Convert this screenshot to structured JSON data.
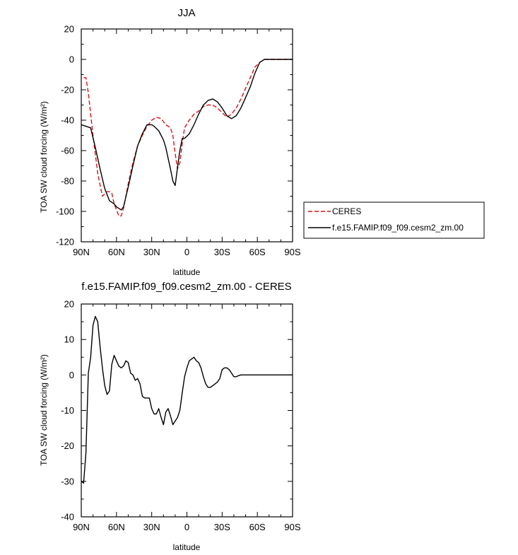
{
  "chart_data": [
    {
      "type": "line",
      "title": "JJA",
      "xlabel": "latitude",
      "ylabel": "TOA SW cloud forcing (W/m²)",
      "ylim": [
        -120,
        20
      ],
      "xlim": [
        -90,
        90
      ],
      "x_ticks": [
        -90,
        -60,
        -30,
        0,
        30,
        60,
        90
      ],
      "x_tick_labels": [
        "90N",
        "60N",
        "30N",
        "0",
        "30S",
        "60S",
        "90S"
      ],
      "y_ticks": [
        20,
        0,
        -20,
        -40,
        -60,
        -80,
        -100,
        -120
      ],
      "y_tick_labels": [
        "20",
        "0",
        "-20",
        "-40",
        "-60",
        "-80",
        "-100",
        "-120"
      ],
      "legend_placement": "right-outside",
      "series": [
        {
          "name": "CERES",
          "color": "#dd1111",
          "dash": "dashed",
          "x": [
            -88,
            -86,
            -84,
            -80,
            -76,
            -72,
            -68,
            -66,
            -64,
            -62,
            -58,
            -56,
            -54,
            -50,
            -46,
            -42,
            -38,
            -34,
            -30,
            -26,
            -22,
            -18,
            -14,
            -12,
            -10,
            -8,
            -6,
            -4,
            -2,
            2,
            6,
            10,
            14,
            18,
            22,
            26,
            30,
            34,
            38,
            42,
            46,
            50,
            54,
            58,
            62,
            66,
            70,
            74,
            80,
            90
          ],
          "y": [
            -12,
            -12,
            -22,
            -50,
            -75,
            -90,
            -87,
            -87,
            -88,
            -95,
            -103,
            -103,
            -98,
            -82,
            -68,
            -57,
            -50,
            -44,
            -40,
            -38,
            -39,
            -43,
            -45,
            -50,
            -62,
            -72,
            -68,
            -55,
            -45,
            -40,
            -36,
            -34,
            -31,
            -30,
            -30,
            -32,
            -35,
            -38,
            -36,
            -32,
            -26,
            -19,
            -12,
            -5,
            -2,
            0,
            0,
            0,
            0,
            0
          ]
        },
        {
          "name": "f.e15.FAMIP.f09_f09.cesm2_zm.00",
          "color": "#000000",
          "dash": "solid",
          "x": [
            -90,
            -86,
            -82,
            -78,
            -74,
            -70,
            -66,
            -62,
            -60,
            -58,
            -56,
            -54,
            -50,
            -46,
            -42,
            -38,
            -34,
            -30,
            -28,
            -24,
            -22,
            -20,
            -18,
            -16,
            -14,
            -12,
            -10,
            -8,
            -6,
            -4,
            -2,
            2,
            6,
            10,
            14,
            18,
            22,
            26,
            30,
            34,
            38,
            42,
            46,
            50,
            54,
            58,
            62,
            66,
            70,
            74,
            80,
            90
          ],
          "y": [
            -43,
            -44,
            -45,
            -58,
            -72,
            -85,
            -93,
            -95,
            -97,
            -98,
            -99,
            -97,
            -84,
            -70,
            -57,
            -49,
            -43,
            -43,
            -44,
            -47,
            -50,
            -53,
            -58,
            -65,
            -72,
            -80,
            -83,
            -71,
            -60,
            -52,
            -52,
            -49,
            -43,
            -36,
            -30,
            -27,
            -26,
            -28,
            -32,
            -37,
            -39,
            -37,
            -32,
            -25,
            -18,
            -9,
            -2,
            0,
            0,
            0,
            0,
            0
          ]
        }
      ]
    },
    {
      "type": "line",
      "title": "f.e15.FAMIP.f09_f09.cesm2_zm.00 - CERES",
      "xlabel": "latitude",
      "ylabel": "TOA SW cloud forcing (W/m²)",
      "ylim": [
        -40,
        20
      ],
      "xlim": [
        -90,
        90
      ],
      "x_ticks": [
        -90,
        -60,
        -30,
        0,
        30,
        60,
        90
      ],
      "x_tick_labels": [
        "90N",
        "60N",
        "30N",
        "0",
        "30S",
        "60S",
        "90S"
      ],
      "y_ticks": [
        20,
        10,
        0,
        -10,
        -20,
        -30,
        -40
      ],
      "y_tick_labels": [
        "20",
        "10",
        "0",
        "-10",
        "-20",
        "-30",
        "-40"
      ],
      "series": [
        {
          "color": "#000000",
          "dash": "solid",
          "x": [
            -90,
            -88,
            -86,
            -84,
            -82,
            -80,
            -78,
            -76,
            -74,
            -72,
            -70,
            -68,
            -66,
            -64,
            -62,
            -60,
            -58,
            -56,
            -54,
            -52,
            -50,
            -48,
            -46,
            -44,
            -42,
            -40,
            -38,
            -36,
            -34,
            -32,
            -30,
            -28,
            -26,
            -24,
            -22,
            -20,
            -18,
            -16,
            -14,
            -12,
            -10,
            -8,
            -6,
            -4,
            -2,
            0,
            2,
            4,
            6,
            8,
            10,
            12,
            14,
            16,
            18,
            20,
            22,
            24,
            26,
            28,
            30,
            32,
            34,
            36,
            38,
            40,
            42,
            44,
            46,
            48,
            50,
            52,
            54,
            56,
            58,
            60,
            62,
            64,
            66,
            68,
            70,
            72,
            74,
            76,
            78,
            80,
            82,
            84,
            86,
            88,
            90
          ],
          "y": [
            -30,
            -30.5,
            -22,
            0.5,
            5,
            14,
            16.5,
            15,
            8,
            2,
            -3,
            -5.5,
            -4.5,
            3,
            5.5,
            4,
            2.5,
            2,
            2.5,
            4,
            3.5,
            0.5,
            0,
            -1.5,
            -1,
            -2.5,
            -6,
            -6.5,
            -6.5,
            -6.5,
            -9.5,
            -11,
            -11,
            -9.5,
            -12,
            -14,
            -10.5,
            -9.5,
            -11.5,
            -14,
            -13,
            -12,
            -10,
            -5,
            -0.5,
            2,
            4,
            4.5,
            5,
            4,
            3.5,
            2,
            -0.5,
            -2.5,
            -3.5,
            -3.5,
            -3,
            -2.5,
            -2,
            -1,
            1.5,
            2,
            2,
            1.5,
            0.5,
            -0.5,
            -0.5,
            -0.2,
            0,
            0,
            0,
            0,
            0,
            0,
            0,
            0,
            0,
            0,
            0,
            0,
            0,
            0,
            0,
            0,
            0,
            0,
            0,
            0,
            0,
            0,
            0
          ]
        }
      ]
    }
  ]
}
